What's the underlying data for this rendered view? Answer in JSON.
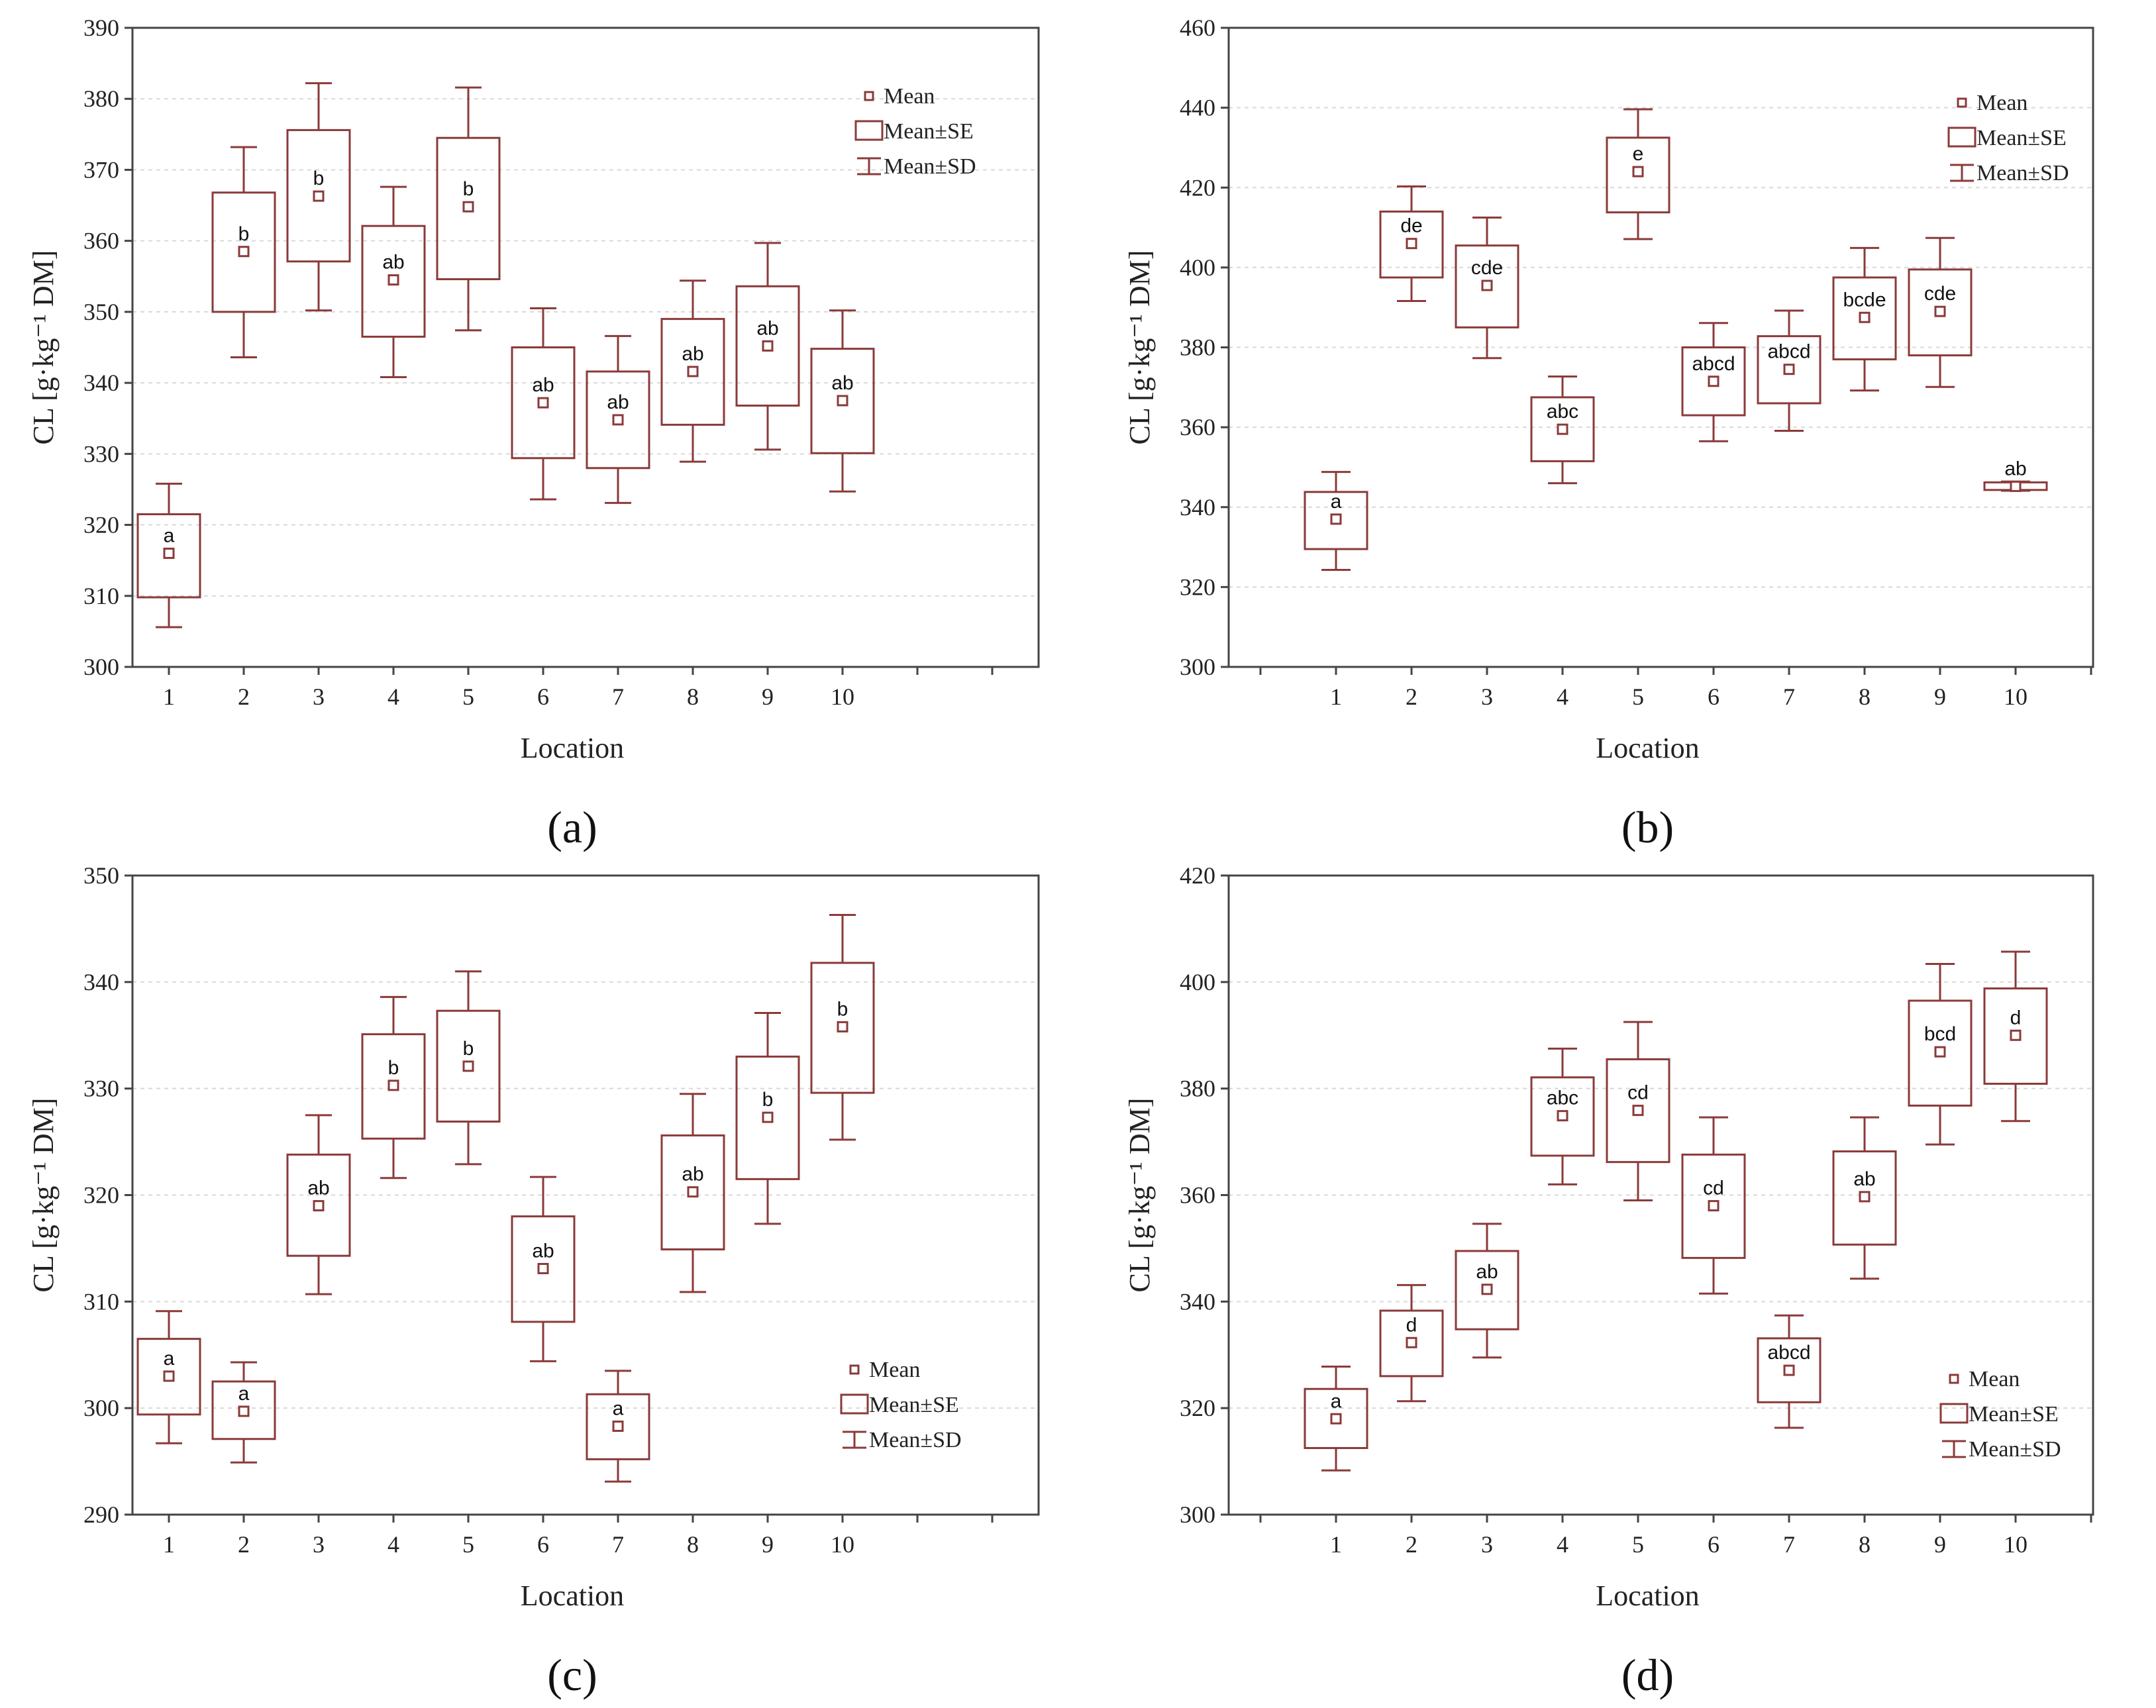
{
  "legend": {
    "mean": "Mean",
    "se": "Mean±SE",
    "sd": "Mean±SD"
  },
  "chart_data": [
    {
      "type": "box",
      "panel_label": "(a)",
      "xlabel": "Location",
      "ylabel": "CL [g·kg⁻¹ DM]",
      "ylim": [
        300,
        390
      ],
      "yticks": [
        300,
        310,
        320,
        330,
        340,
        350,
        360,
        370,
        380,
        390
      ],
      "categories": [
        "1",
        "2",
        "3",
        "4",
        "5",
        "6",
        "7",
        "8",
        "9",
        "10"
      ],
      "mean": [
        316,
        358.5,
        366.3,
        354.5,
        364.8,
        337.2,
        334.8,
        341.6,
        345.2,
        337.5
      ],
      "se_low": [
        309.8,
        350,
        357.1,
        346.5,
        354.6,
        329.4,
        328,
        334.1,
        336.8,
        330.1
      ],
      "se_high": [
        321.5,
        366.8,
        375.6,
        362.1,
        374.5,
        345,
        341.6,
        349,
        353.6,
        344.8
      ],
      "sd_low": [
        305.6,
        343.6,
        350.2,
        340.8,
        347.4,
        323.6,
        323.1,
        328.9,
        330.6,
        324.7
      ],
      "sd_high": [
        325.8,
        373.2,
        382.2,
        367.6,
        381.6,
        350.5,
        346.6,
        354.4,
        359.7,
        350.2
      ],
      "letters": [
        "a",
        "b",
        "b",
        "ab",
        "b",
        "ab",
        "ab",
        "ab",
        "ab",
        "ab"
      ],
      "legend_position": "top-right"
    },
    {
      "type": "box",
      "panel_label": "(b)",
      "xlabel": "Location",
      "ylabel": "CL [g·kg⁻¹ DM]",
      "ylim": [
        300,
        460
      ],
      "yticks": [
        300,
        320,
        340,
        360,
        380,
        400,
        420,
        440,
        460
      ],
      "categories": [
        "1",
        "2",
        "3",
        "4",
        "5",
        "6",
        "7",
        "8",
        "9",
        "10"
      ],
      "mean": [
        337,
        406,
        395.5,
        359.5,
        424,
        371.5,
        374.5,
        387.5,
        389,
        345.2
      ],
      "se_low": [
        329.5,
        397.5,
        385,
        351.5,
        413.8,
        363,
        366,
        377,
        378,
        344.3
      ],
      "se_high": [
        343.8,
        414,
        405.5,
        367.5,
        432.5,
        380,
        382.8,
        397.5,
        399.5,
        346.2
      ],
      "sd_low": [
        324.3,
        391.6,
        377.3,
        346,
        407.1,
        356.5,
        359.1,
        369.2,
        370.1,
        344.1
      ],
      "sd_high": [
        348.8,
        420.3,
        412.5,
        372.7,
        439.6,
        386.1,
        389.2,
        404.9,
        407.4,
        346.4
      ],
      "letters": [
        "a",
        "de",
        "cde",
        "abc",
        "e",
        "abcd",
        "abcd",
        "bcde",
        "cde",
        "ab"
      ],
      "legend_position": "top-right"
    },
    {
      "type": "box",
      "panel_label": "(c)",
      "xlabel": "Location",
      "ylabel": "CL [g·kg⁻¹ DM]",
      "ylim": [
        290,
        350
      ],
      "yticks": [
        290,
        300,
        310,
        320,
        330,
        340,
        350
      ],
      "categories": [
        "1",
        "2",
        "3",
        "4",
        "5",
        "6",
        "7",
        "8",
        "9",
        "10"
      ],
      "mean": [
        303,
        299.7,
        319,
        330.3,
        332.1,
        313.1,
        298.3,
        320.3,
        327.3,
        335.8
      ],
      "se_low": [
        299.4,
        297.1,
        314.3,
        325.3,
        326.9,
        308.1,
        295.2,
        314.9,
        321.5,
        329.6
      ],
      "se_high": [
        306.5,
        302.5,
        323.8,
        335.1,
        337.3,
        318,
        301.3,
        325.6,
        333,
        341.8
      ],
      "sd_low": [
        296.7,
        294.9,
        310.7,
        321.6,
        322.9,
        304.4,
        293.1,
        310.9,
        317.3,
        325.2
      ],
      "sd_high": [
        309.1,
        304.3,
        327.5,
        338.6,
        341,
        321.7,
        303.5,
        329.5,
        337.1,
        346.3
      ],
      "letters": [
        "a",
        "a",
        "ab",
        "b",
        "b",
        "ab",
        "a",
        "ab",
        "b",
        "b"
      ],
      "legend_position": "bottom-right"
    },
    {
      "type": "box",
      "panel_label": "(d)",
      "xlabel": "Location",
      "ylabel": "CL [g·kg⁻¹ DM]",
      "ylim": [
        300,
        420
      ],
      "yticks": [
        300,
        320,
        340,
        360,
        380,
        400,
        420
      ],
      "categories": [
        "1",
        "2",
        "3",
        "4",
        "5",
        "6",
        "7",
        "8",
        "9",
        "10"
      ],
      "mean": [
        318,
        332.3,
        342.3,
        374.9,
        375.9,
        358,
        327.1,
        359.7,
        386.9,
        390
      ],
      "se_low": [
        312.5,
        326,
        334.8,
        367.4,
        366.2,
        348.2,
        321.1,
        350.7,
        376.8,
        380.9
      ],
      "se_high": [
        323.6,
        338.3,
        349.5,
        382.1,
        385.5,
        367.6,
        333.1,
        368.2,
        396.5,
        398.8
      ],
      "sd_low": [
        308.3,
        321.3,
        329.5,
        362,
        359,
        341.5,
        316.3,
        344.3,
        369.5,
        373.9
      ],
      "sd_high": [
        327.8,
        343.1,
        354.6,
        387.5,
        392.5,
        374.6,
        337.4,
        374.6,
        403.4,
        405.7
      ],
      "letters": [
        "a",
        "d",
        "ab",
        "abc",
        "cd",
        "cd",
        "abcd",
        "ab",
        "bcd",
        "d"
      ],
      "legend_position": "bottom-right"
    }
  ]
}
